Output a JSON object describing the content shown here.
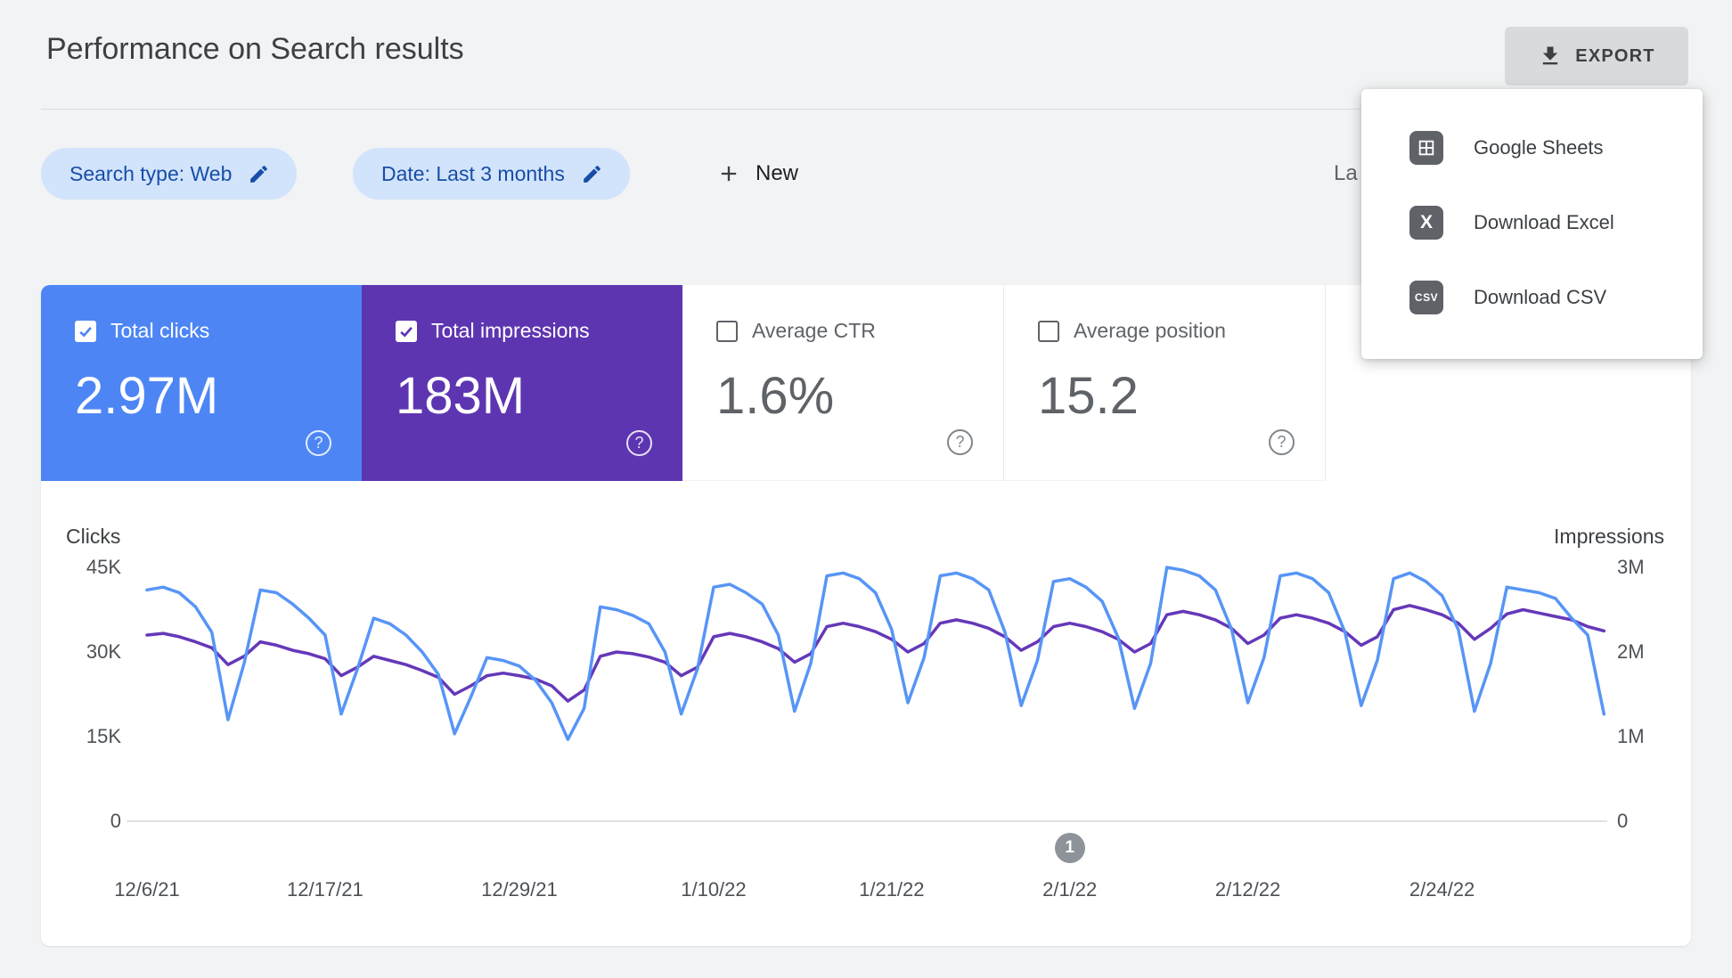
{
  "header": {
    "title": "Performance on Search results",
    "export_label": "EXPORT"
  },
  "filters": {
    "search_type_chip": "Search type: Web",
    "date_chip": "Date: Last 3 months",
    "new_button": "New",
    "clipped_label": "La"
  },
  "export_menu": {
    "items": [
      {
        "label": "Google Sheets",
        "icon": "google-sheets-icon"
      },
      {
        "label": "Download Excel",
        "icon": "excel-icon"
      },
      {
        "label": "Download CSV",
        "icon": "csv-icon"
      }
    ]
  },
  "metric_cards": [
    {
      "label": "Total clicks",
      "value": "2.97M",
      "selected": true,
      "color": "#4d86f4"
    },
    {
      "label": "Total impressions",
      "value": "183M",
      "selected": true,
      "color": "#5e35b1"
    },
    {
      "label": "Average CTR",
      "value": "1.6%",
      "selected": false
    },
    {
      "label": "Average position",
      "value": "15.2",
      "selected": false
    }
  ],
  "chart_data": {
    "type": "line",
    "left_axis": {
      "title": "Clicks",
      "max": 45000,
      "ticks": [
        {
          "label": "45K",
          "value": 45000
        },
        {
          "label": "30K",
          "value": 30000
        },
        {
          "label": "15K",
          "value": 15000
        },
        {
          "label": "0",
          "value": 0
        }
      ]
    },
    "right_axis": {
      "title": "Impressions",
      "max": 3000000,
      "ticks": [
        {
          "label": "3M",
          "value": 3000000
        },
        {
          "label": "2M",
          "value": 2000000
        },
        {
          "label": "1M",
          "value": 1000000
        },
        {
          "label": "0",
          "value": 0
        }
      ]
    },
    "x_labels": [
      {
        "label": "12/6/21",
        "day": 0
      },
      {
        "label": "12/17/21",
        "day": 11
      },
      {
        "label": "12/29/21",
        "day": 23
      },
      {
        "label": "1/10/22",
        "day": 35
      },
      {
        "label": "1/21/22",
        "day": 46
      },
      {
        "label": "2/1/22",
        "day": 57
      },
      {
        "label": "2/12/22",
        "day": 68
      },
      {
        "label": "2/24/22",
        "day": 80
      }
    ],
    "annotation": {
      "label": "1",
      "day": 57
    },
    "series": [
      {
        "name": "Clicks",
        "axis": "left",
        "color": "#5795f6",
        "values": [
          41000,
          41500,
          40500,
          38000,
          33500,
          18000,
          28000,
          41000,
          40500,
          38500,
          36000,
          33000,
          19000,
          27000,
          36000,
          35000,
          33000,
          30000,
          26000,
          15500,
          22000,
          29000,
          28500,
          27500,
          25000,
          21000,
          14500,
          20000,
          38000,
          37500,
          36500,
          35000,
          30000,
          19000,
          27000,
          41500,
          42000,
          40500,
          38500,
          33000,
          19500,
          28000,
          43500,
          44000,
          43000,
          40500,
          34000,
          21000,
          29000,
          43500,
          44000,
          43000,
          41000,
          33500,
          20500,
          28500,
          42500,
          43000,
          41500,
          39000,
          32500,
          20000,
          28000,
          45000,
          44500,
          43500,
          41000,
          34000,
          21000,
          29000,
          43500,
          44000,
          43000,
          40500,
          33500,
          20500,
          28500,
          43000,
          44000,
          42500,
          40000,
          34000,
          19500,
          28000,
          41500,
          41000,
          40500,
          39500,
          36000,
          33000,
          19000
        ]
      },
      {
        "name": "Impressions",
        "axis": "right",
        "color": "#6538b8",
        "values": [
          2200000,
          2220000,
          2180000,
          2120000,
          2050000,
          1850000,
          1950000,
          2120000,
          2080000,
          2020000,
          1980000,
          1920000,
          1720000,
          1820000,
          1950000,
          1900000,
          1850000,
          1780000,
          1700000,
          1500000,
          1600000,
          1720000,
          1750000,
          1720000,
          1680000,
          1600000,
          1420000,
          1550000,
          1950000,
          2000000,
          1980000,
          1940000,
          1880000,
          1720000,
          1820000,
          2180000,
          2220000,
          2180000,
          2120000,
          2040000,
          1880000,
          1980000,
          2300000,
          2340000,
          2300000,
          2240000,
          2150000,
          2000000,
          2100000,
          2340000,
          2380000,
          2340000,
          2280000,
          2180000,
          2020000,
          2120000,
          2300000,
          2340000,
          2300000,
          2240000,
          2150000,
          2000000,
          2100000,
          2440000,
          2480000,
          2440000,
          2380000,
          2280000,
          2100000,
          2200000,
          2400000,
          2440000,
          2400000,
          2340000,
          2240000,
          2080000,
          2180000,
          2500000,
          2550000,
          2500000,
          2440000,
          2340000,
          2150000,
          2280000,
          2450000,
          2500000,
          2460000,
          2420000,
          2380000,
          2300000,
          2250000
        ]
      }
    ]
  },
  "colors": {
    "page_background": "#f1f3f4",
    "chip_background": "#d2e3fc",
    "chip_text": "#174ea6",
    "clicks_blue": "#4d86f4",
    "impressions_purple": "#5e35b1"
  }
}
